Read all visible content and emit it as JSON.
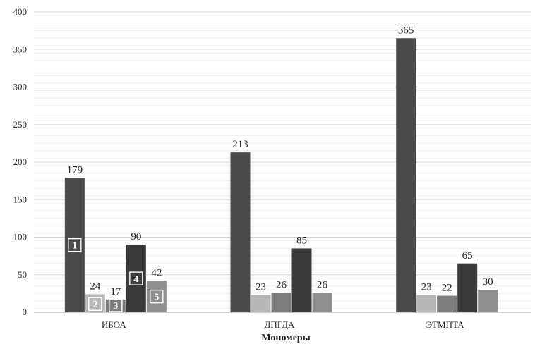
{
  "chart_data": {
    "type": "bar",
    "title": "",
    "xlabel": "Мономеры",
    "ylabel": "",
    "ylim": [
      0,
      400
    ],
    "yticks": [
      0,
      50,
      100,
      150,
      200,
      250,
      300,
      350,
      400
    ],
    "grid": true,
    "legend": "none",
    "categories": [
      "ИБОА",
      "ДПГДА",
      "ЭТМПТА"
    ],
    "series": [
      {
        "badge": "1",
        "color": "#4a4a4a",
        "values": [
          179,
          213,
          365
        ]
      },
      {
        "badge": "2",
        "color": "#b7b7b7",
        "values": [
          24,
          23,
          23
        ]
      },
      {
        "badge": "3",
        "color": "#7d7d7d",
        "values": [
          17,
          26,
          22
        ]
      },
      {
        "badge": "4",
        "color": "#3a3a3a",
        "values": [
          90,
          85,
          65
        ]
      },
      {
        "badge": "5",
        "color": "#8f8f8f",
        "values": [
          42,
          26,
          30
        ]
      }
    ]
  }
}
